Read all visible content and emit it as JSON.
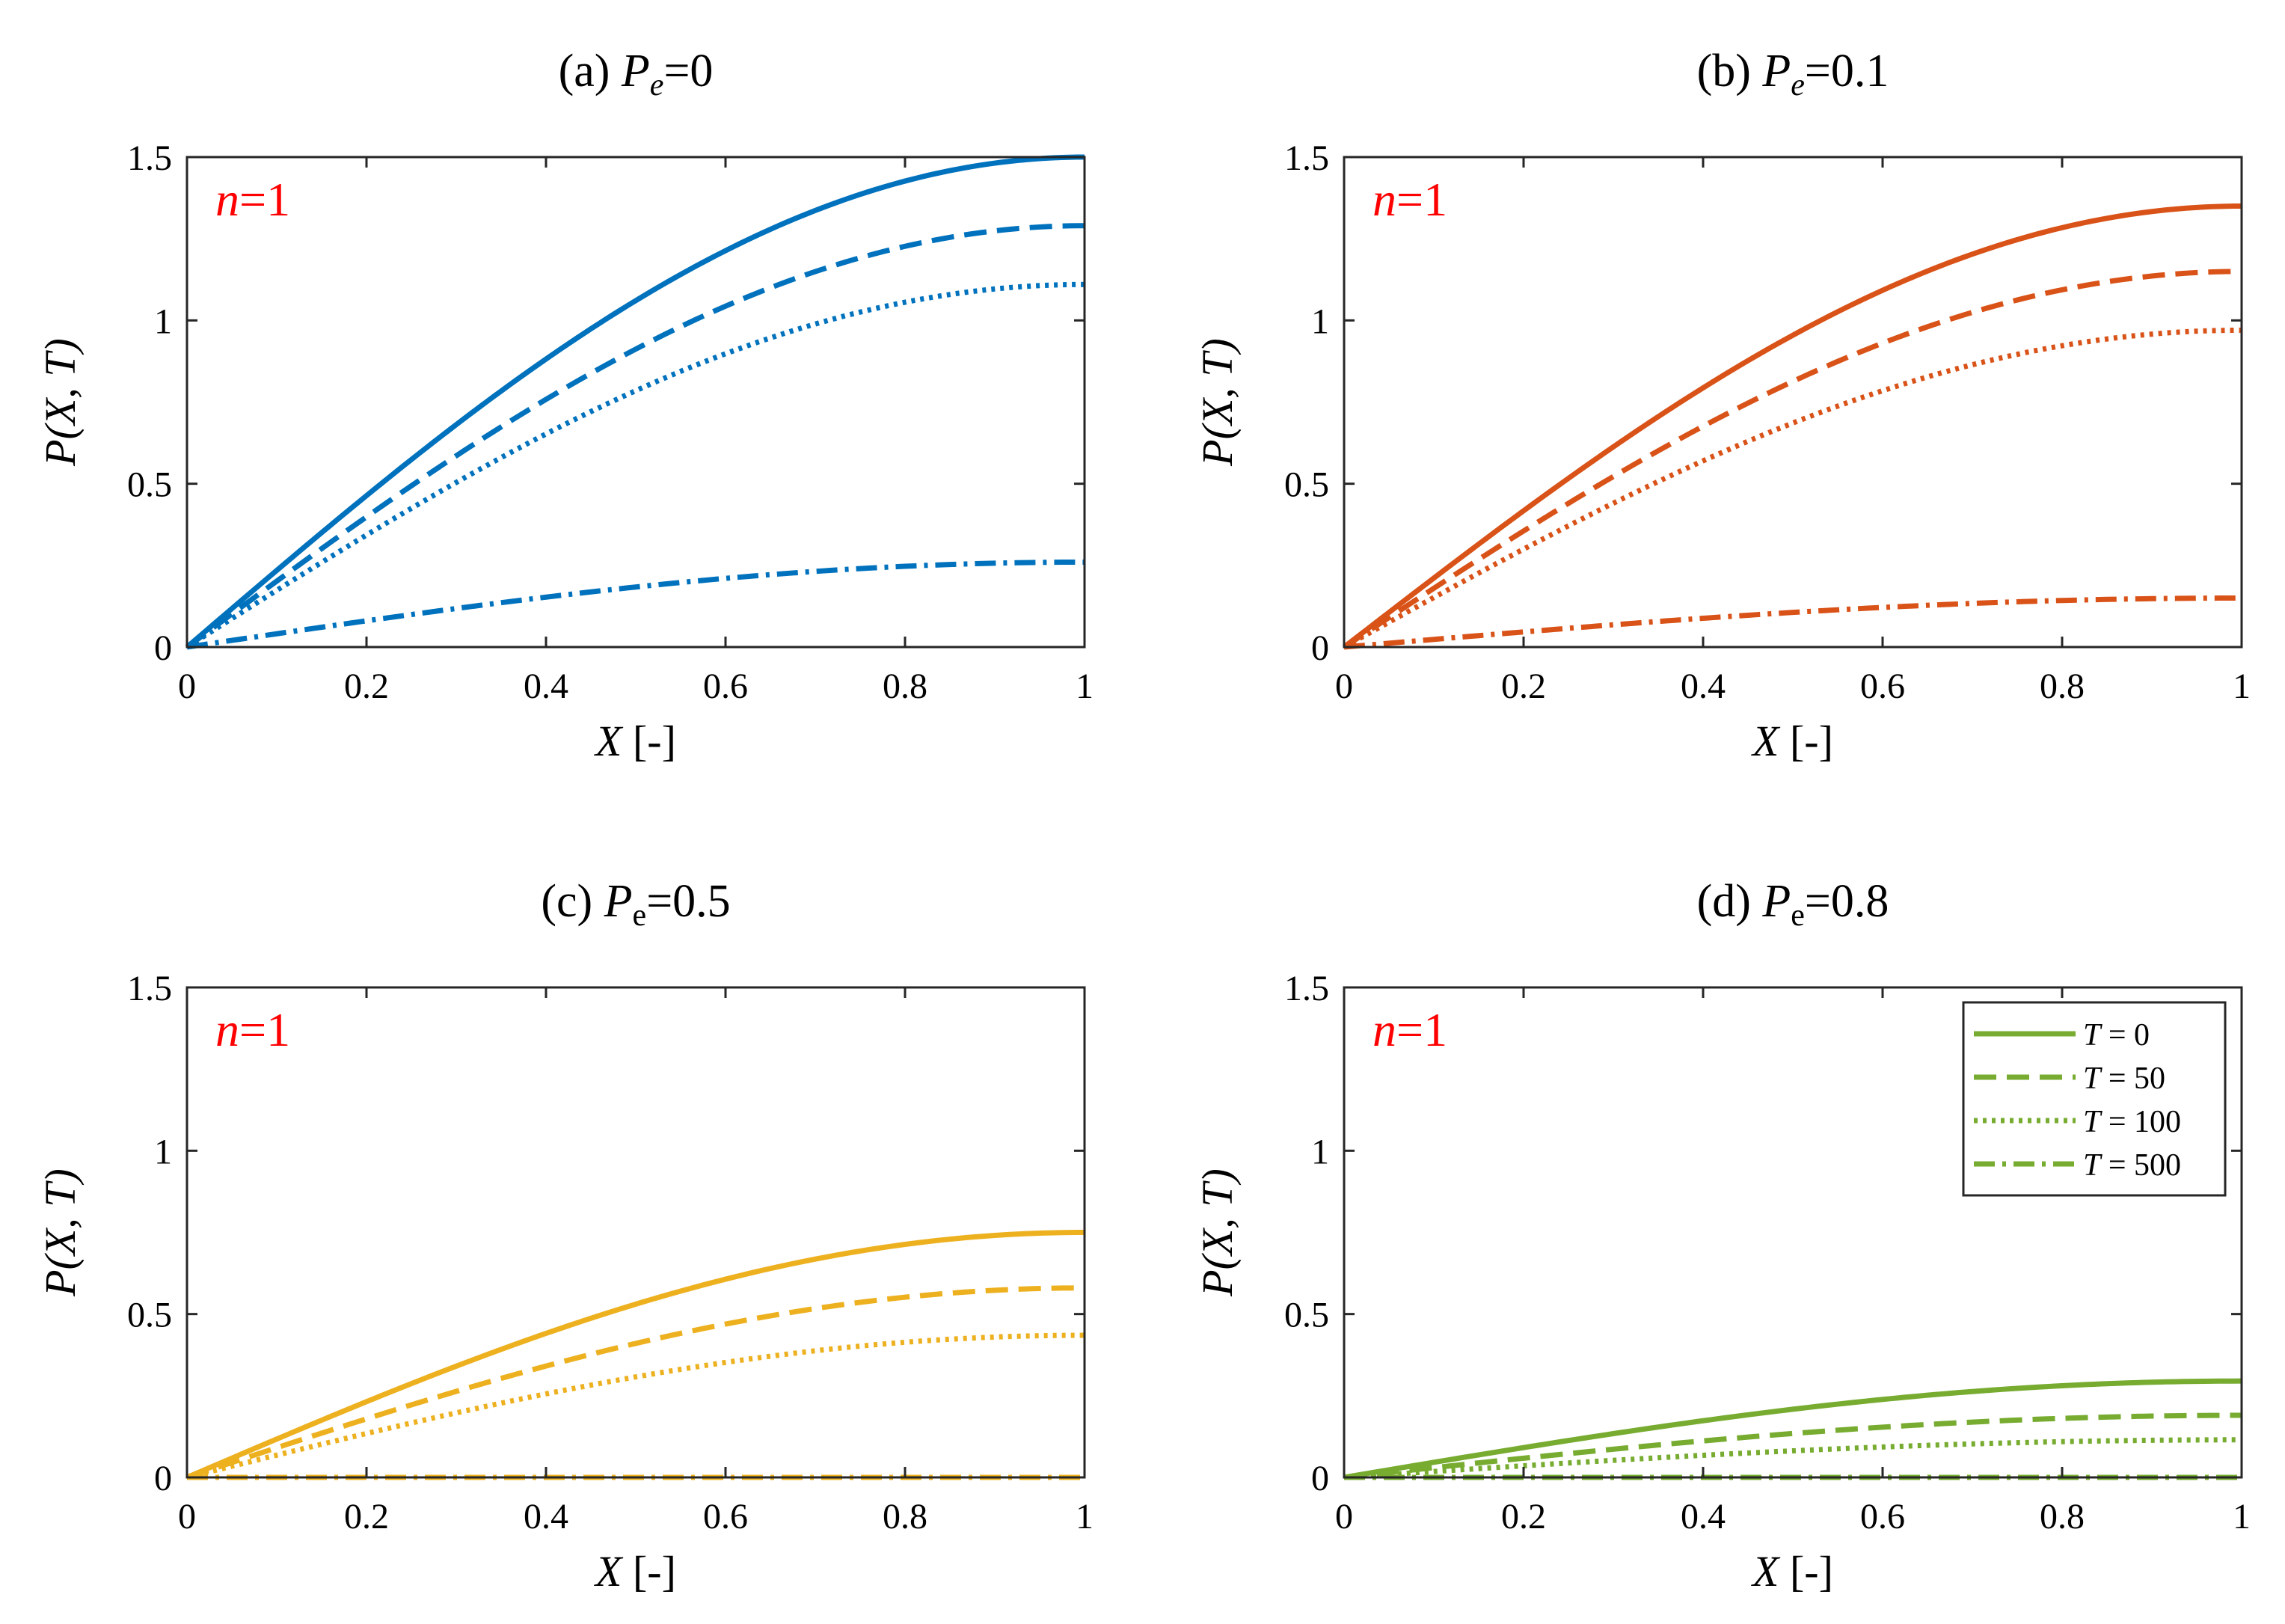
{
  "figure": {
    "legend_entries": [
      "T = 0",
      "T = 50",
      "T = 100",
      "T = 500"
    ]
  },
  "chart_data": [
    {
      "type": "line",
      "title": "(a) Pe=0",
      "title_prefix": "(a) ",
      "title_var": "P",
      "title_sub": "e",
      "title_suffix": "=0",
      "annotation": "n=1",
      "annotation_var": "n",
      "annotation_rest": "=1",
      "annotation_color": "#ff0000",
      "xlabel": "X [-]",
      "xlabel_var": "X",
      "xlabel_unit": "[-]",
      "ylabel": "P(X,T)",
      "xlim": [
        0,
        1
      ],
      "ylim": [
        0,
        1.5
      ],
      "xticks": [
        "0",
        "0.2",
        "0.4",
        "0.6",
        "0.8",
        "1"
      ],
      "yticks": [
        "0",
        "0.5",
        "1",
        "1.5"
      ],
      "color": "#0072bd",
      "series": [
        {
          "name": "T = 0",
          "style": "solid",
          "amplitude": 1.5
        },
        {
          "name": "T = 50",
          "style": "dashed",
          "amplitude": 1.29
        },
        {
          "name": "T = 100",
          "style": "dotted",
          "amplitude": 1.11
        },
        {
          "name": "T = 500",
          "style": "dashdot",
          "amplitude": 0.26
        }
      ]
    },
    {
      "type": "line",
      "title": "(b) Pe=0.1",
      "title_prefix": "(b) ",
      "title_var": "P",
      "title_sub": "e",
      "title_suffix": "=0.1",
      "annotation": "n=1",
      "annotation_var": "n",
      "annotation_rest": "=1",
      "annotation_color": "#ff0000",
      "xlabel": "X [-]",
      "xlabel_var": "X",
      "xlabel_unit": "[-]",
      "ylabel": "P(X,T)",
      "xlim": [
        0,
        1
      ],
      "ylim": [
        0,
        1.5
      ],
      "xticks": [
        "0",
        "0.2",
        "0.4",
        "0.6",
        "0.8",
        "1"
      ],
      "yticks": [
        "0",
        "0.5",
        "1",
        "1.5"
      ],
      "color": "#d95319",
      "series": [
        {
          "name": "T = 0",
          "style": "solid",
          "amplitude": 1.35
        },
        {
          "name": "T = 50",
          "style": "dashed",
          "amplitude": 1.15
        },
        {
          "name": "T = 100",
          "style": "dotted",
          "amplitude": 0.97
        },
        {
          "name": "T = 500",
          "style": "dashdot",
          "amplitude": 0.15
        }
      ]
    },
    {
      "type": "line",
      "title": "(c) Pe=0.5",
      "title_prefix": "(c) ",
      "title_var": "P",
      "title_sub": "e",
      "title_suffix": "=0.5",
      "annotation": "n=1",
      "annotation_var": "n",
      "annotation_rest": "=1",
      "annotation_color": "#ff0000",
      "xlabel": "X [-]",
      "xlabel_var": "X",
      "xlabel_unit": "[-]",
      "ylabel": "P(X,T)",
      "xlim": [
        0,
        1
      ],
      "ylim": [
        0,
        1.5
      ],
      "xticks": [
        "0",
        "0.2",
        "0.4",
        "0.6",
        "0.8",
        "1"
      ],
      "yticks": [
        "0",
        "0.5",
        "1",
        "1.5"
      ],
      "color": "#edb120",
      "series": [
        {
          "name": "T = 0",
          "style": "solid",
          "amplitude": 0.75
        },
        {
          "name": "T = 50",
          "style": "dashed",
          "amplitude": 0.58
        },
        {
          "name": "T = 100",
          "style": "dotted",
          "amplitude": 0.435
        },
        {
          "name": "T = 500",
          "style": "dashdot",
          "amplitude": 0.0
        }
      ]
    },
    {
      "type": "line",
      "title": "(d) Pe=0.8",
      "title_prefix": "(d) ",
      "title_var": "P",
      "title_sub": "e",
      "title_suffix": "=0.8",
      "annotation": "n=1",
      "annotation_var": "n",
      "annotation_rest": "=1",
      "annotation_color": "#ff0000",
      "xlabel": "X [-]",
      "xlabel_var": "X",
      "xlabel_unit": "[-]",
      "ylabel": "P(X,T)",
      "xlim": [
        0,
        1
      ],
      "ylim": [
        0,
        1.5
      ],
      "xticks": [
        "0",
        "0.2",
        "0.4",
        "0.6",
        "0.8",
        "1"
      ],
      "yticks": [
        "0",
        "0.5",
        "1",
        "1.5"
      ],
      "color": "#77ac30",
      "legend": "top-right",
      "series": [
        {
          "name": "T = 0",
          "style": "solid",
          "amplitude": 0.295
        },
        {
          "name": "T = 50",
          "style": "dashed",
          "amplitude": 0.19
        },
        {
          "name": "T = 100",
          "style": "dotted",
          "amplitude": 0.115
        },
        {
          "name": "T = 500",
          "style": "dashdot",
          "amplitude": 0.0
        }
      ]
    }
  ]
}
